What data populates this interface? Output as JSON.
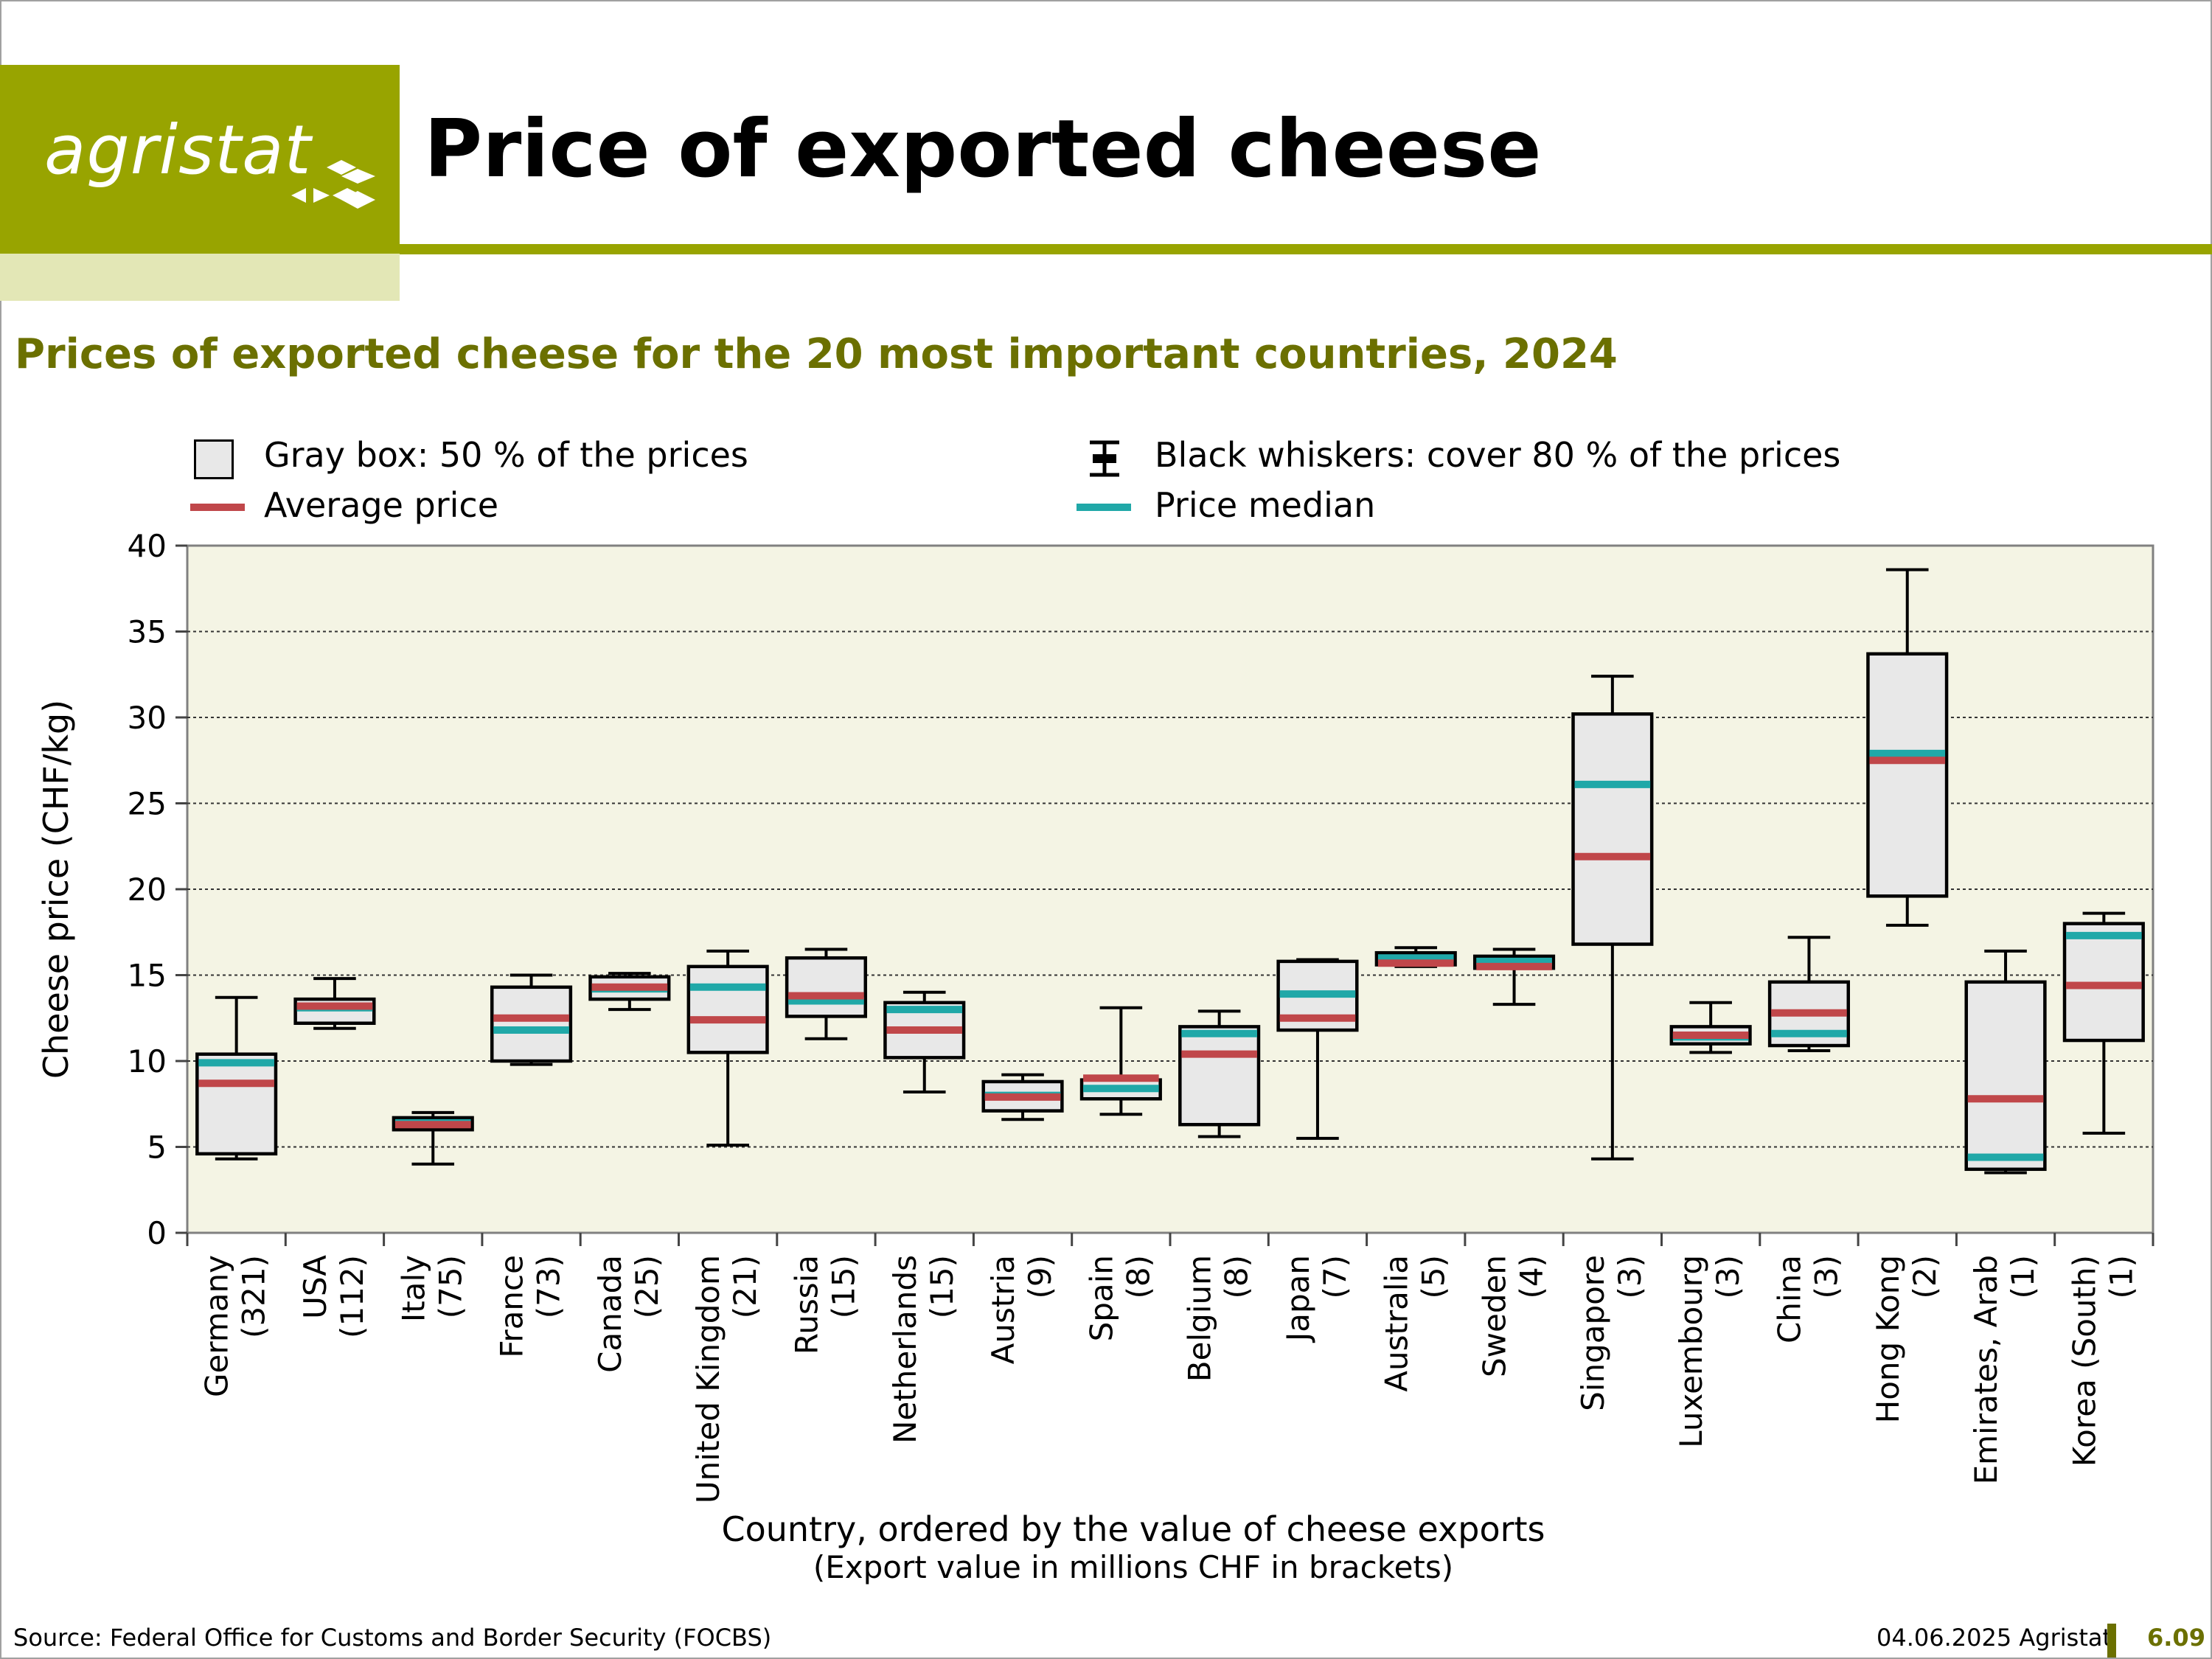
{
  "brand": {
    "logo_text": "agristat",
    "accent_color": "#98a400",
    "light_accent_color": "#e3e7b6"
  },
  "header": {
    "title": "Price of exported cheese",
    "subtitle": "Prices of exported cheese for the 20 most important countries, 2024"
  },
  "legend": {
    "box_label": "Gray box: 50 % of the prices",
    "whisker_label": "Black whiskers: cover 80 % of the prices",
    "average_label": "Average price",
    "median_label": "Price median",
    "average_color": "#c0474a",
    "median_color": "#20a8a8"
  },
  "chart_data": {
    "type": "box",
    "ylabel": "Cheese price (CHF/kg)",
    "xlabel": "Country, ordered by the value of cheese exports",
    "xlabel_sub": "(Export value in millions CHF in brackets)",
    "ylim": [
      0,
      40
    ],
    "yticks": [
      0,
      5,
      10,
      15,
      20,
      25,
      30,
      35,
      40
    ],
    "grid": true,
    "plot_background": "#f4f4e4",
    "box_color": "#e8e8e8",
    "categories": [
      {
        "name": "Germany",
        "export": "(321)",
        "whisker_low": 4.3,
        "q1": 4.6,
        "median": 9.9,
        "mean": 8.7,
        "q3": 10.4,
        "whisker_high": 13.7
      },
      {
        "name": "USA",
        "export": "(112)",
        "whisker_low": 11.9,
        "q1": 12.2,
        "median": 13.1,
        "mean": 13.2,
        "q3": 13.6,
        "whisker_high": 14.8
      },
      {
        "name": "Italy",
        "export": "(75)",
        "whisker_low": 4.0,
        "q1": 6.0,
        "median": 6.4,
        "mean": 6.3,
        "q3": 6.7,
        "whisker_high": 7.0
      },
      {
        "name": "France",
        "export": "(73)",
        "whisker_low": 9.8,
        "q1": 10.0,
        "median": 11.8,
        "mean": 12.5,
        "q3": 14.3,
        "whisker_high": 15.0
      },
      {
        "name": "Canada",
        "export": "(25)",
        "whisker_low": 13.0,
        "q1": 13.6,
        "median": 14.2,
        "mean": 14.3,
        "q3": 14.9,
        "whisker_high": 15.1
      },
      {
        "name": "United Kingdom",
        "export": "(21)",
        "whisker_low": 5.1,
        "q1": 10.5,
        "median": 14.3,
        "mean": 12.4,
        "q3": 15.5,
        "whisker_high": 16.4
      },
      {
        "name": "Russia",
        "export": "(15)",
        "whisker_low": 11.3,
        "q1": 12.6,
        "median": 13.5,
        "mean": 13.8,
        "q3": 16.0,
        "whisker_high": 16.5
      },
      {
        "name": "Netherlands",
        "export": "(15)",
        "whisker_low": 8.2,
        "q1": 10.2,
        "median": 13.0,
        "mean": 11.8,
        "q3": 13.4,
        "whisker_high": 14.0
      },
      {
        "name": "Austria",
        "export": "(9)",
        "whisker_low": 6.6,
        "q1": 7.1,
        "median": 8.0,
        "mean": 7.9,
        "q3": 8.8,
        "whisker_high": 9.2
      },
      {
        "name": "Spain",
        "export": "(8)",
        "whisker_low": 6.9,
        "q1": 7.8,
        "median": 8.4,
        "mean": 9.0,
        "q3": 8.9,
        "whisker_high": 13.1
      },
      {
        "name": "Belgium",
        "export": "(8)",
        "whisker_low": 5.6,
        "q1": 6.3,
        "median": 11.6,
        "mean": 10.4,
        "q3": 12.0,
        "whisker_high": 12.9
      },
      {
        "name": "Japan",
        "export": "(7)",
        "whisker_low": 5.5,
        "q1": 11.8,
        "median": 13.9,
        "mean": 12.5,
        "q3": 15.8,
        "whisker_high": 15.9
      },
      {
        "name": "Australia",
        "export": "(5)",
        "whisker_low": 15.5,
        "q1": 15.6,
        "median": 16.0,
        "mean": 15.7,
        "q3": 16.3,
        "whisker_high": 16.6
      },
      {
        "name": "Sweden",
        "export": "(4)",
        "whisker_low": 13.3,
        "q1": 15.4,
        "median": 15.8,
        "mean": 15.5,
        "q3": 16.1,
        "whisker_high": 16.5
      },
      {
        "name": "Singapore",
        "export": "(3)",
        "whisker_low": 4.3,
        "q1": 16.8,
        "median": 26.1,
        "mean": 21.9,
        "q3": 30.2,
        "whisker_high": 32.4
      },
      {
        "name": "Luxembourg",
        "export": "(3)",
        "whisker_low": 10.5,
        "q1": 11.0,
        "median": 11.4,
        "mean": 11.5,
        "q3": 12.0,
        "whisker_high": 13.4
      },
      {
        "name": "China",
        "export": "(3)",
        "whisker_low": 10.6,
        "q1": 10.9,
        "median": 11.6,
        "mean": 12.8,
        "q3": 14.6,
        "whisker_high": 17.2
      },
      {
        "name": "Hong Kong",
        "export": "(2)",
        "whisker_low": 17.9,
        "q1": 19.6,
        "median": 27.9,
        "mean": 27.5,
        "q3": 33.7,
        "whisker_high": 38.6
      },
      {
        "name": "Emirates, Arab",
        "export": "(1)",
        "whisker_low": 3.5,
        "q1": 3.7,
        "median": 4.4,
        "mean": 7.8,
        "q3": 14.6,
        "whisker_high": 16.4
      },
      {
        "name": "Korea (South)",
        "export": "(1)",
        "whisker_low": 5.8,
        "q1": 11.2,
        "median": 17.3,
        "mean": 14.4,
        "q3": 18.0,
        "whisker_high": 18.6
      }
    ]
  },
  "footer": {
    "source": "Source: Federal Office for Customs and Border Security (FOCBS)",
    "date": "04.06.2025 Agristat",
    "page": "6.09"
  }
}
